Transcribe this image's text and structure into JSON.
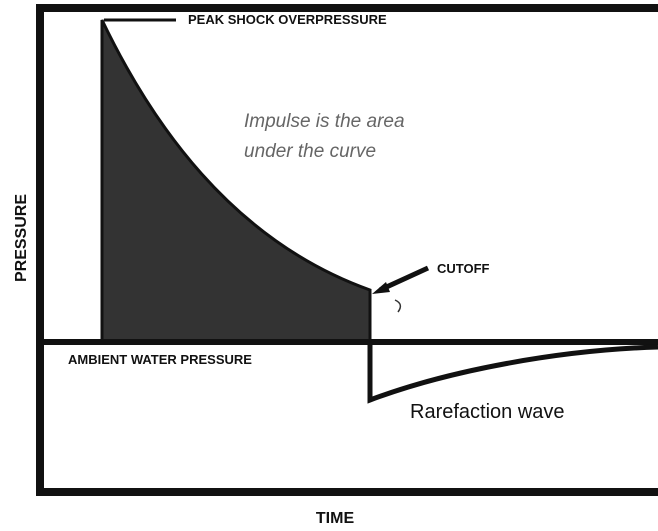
{
  "diagram": {
    "peak_label": "PEAK SHOCK OVERPRESSURE",
    "impulse_note": [
      "Impulse is the area",
      "under the curve"
    ],
    "cutoff_label": "CUTOFF",
    "ambient_label": "AMBIENT WATER PRESSURE",
    "rarefaction_label": "Rarefaction wave",
    "y_axis_label": "PRESSURE",
    "x_axis_label": "TIME"
  }
}
